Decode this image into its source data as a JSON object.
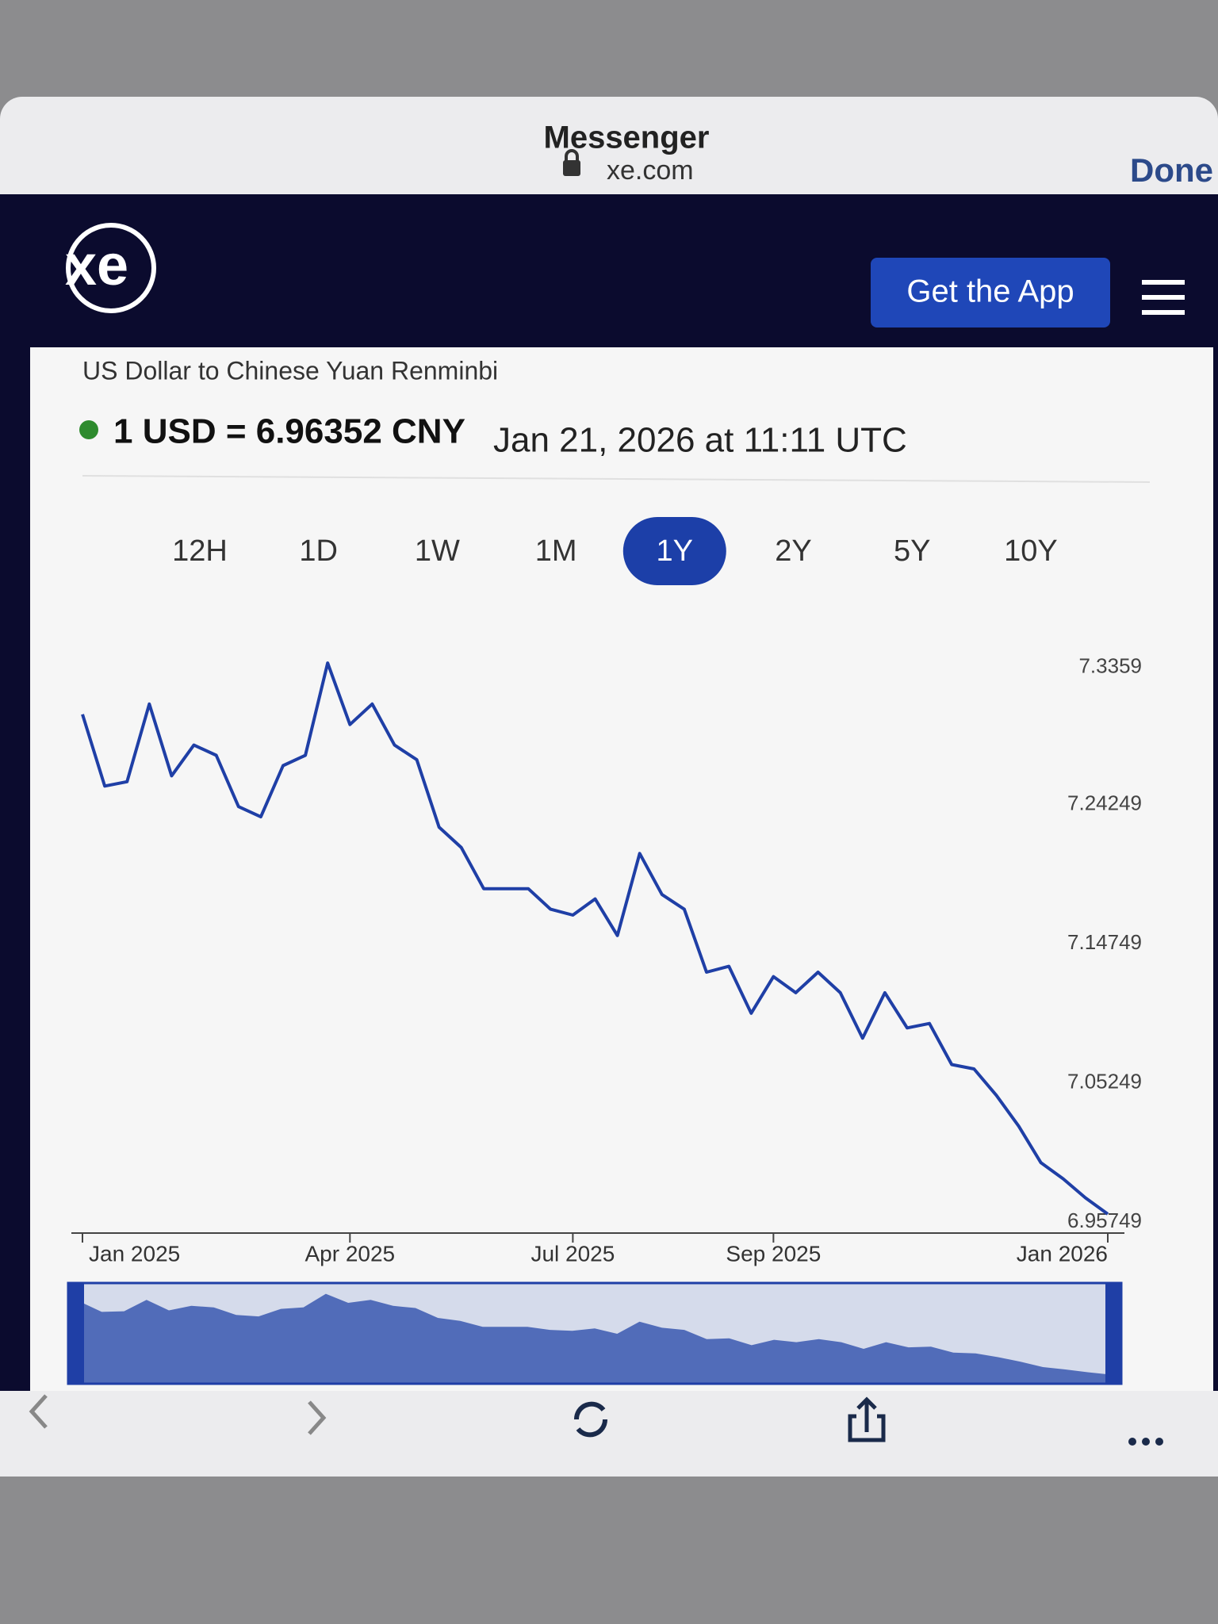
{
  "browser": {
    "title": "Messenger",
    "domain": "xe.com",
    "done": "Done"
  },
  "site": {
    "logo": "xe",
    "cta": "Get the App"
  },
  "converter": {
    "heading": "US Dollar to Chinese Yuan Renminbi",
    "rate": "1 USD = 6.96352 CNY",
    "timestamp": "Jan 21, 2026 at 11:11 UTC"
  },
  "ranges": [
    "12H",
    "1D",
    "1W",
    "1M",
    "1Y",
    "2Y",
    "5Y",
    "10Y"
  ],
  "selected_range": "1Y",
  "chart_data": {
    "type": "line",
    "color": "#1f3fa6",
    "grid": false,
    "categories": [
      "Jan 2025",
      null,
      null,
      null,
      null,
      null,
      null,
      null,
      null,
      null,
      null,
      null,
      "Apr 2025",
      null,
      null,
      null,
      null,
      null,
      null,
      null,
      null,
      null,
      "Jul 2025",
      null,
      null,
      null,
      null,
      null,
      null,
      null,
      null,
      "Sep 2025",
      null,
      null,
      null,
      null,
      null,
      null,
      null,
      null,
      null,
      null,
      null,
      null,
      null,
      null,
      "Jan 2026"
    ],
    "values": [
      7.304,
      7.255,
      7.258,
      7.311,
      7.262,
      7.283,
      7.276,
      7.241,
      7.234,
      7.269,
      7.276,
      7.339,
      7.297,
      7.311,
      7.283,
      7.273,
      7.227,
      7.213,
      7.185,
      7.185,
      7.185,
      7.171,
      7.167,
      7.178,
      7.153,
      7.209,
      7.181,
      7.171,
      7.128,
      7.132,
      7.1,
      7.125,
      7.114,
      7.128,
      7.114,
      7.083,
      7.114,
      7.09,
      7.093,
      7.065,
      7.062,
      7.044,
      7.023,
      6.998,
      6.987,
      6.974,
      6.963
    ],
    "ylim": [
      6.95,
      7.345
    ],
    "yticks": [
      6.95749,
      7.05249,
      7.14749,
      7.24249,
      7.3359
    ]
  }
}
